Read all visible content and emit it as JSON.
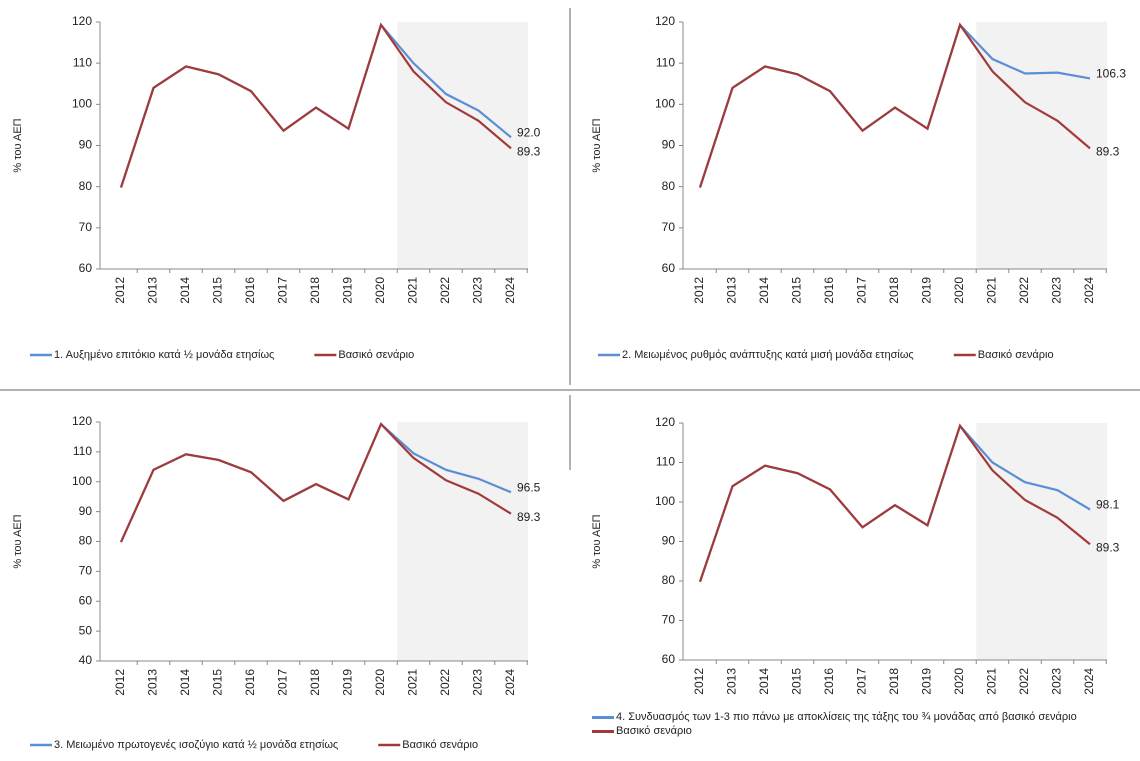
{
  "chart_data": [
    {
      "type": "line",
      "y_label": "% του ΑΕΠ",
      "categories": [
        "2012",
        "2013",
        "2014",
        "2015",
        "2016",
        "2017",
        "2018",
        "2019",
        "2020",
        "2021",
        "2022",
        "2023",
        "2024"
      ],
      "forecast_start": "2021",
      "ylim": [
        60,
        120
      ],
      "yticks": [
        60,
        70,
        80,
        90,
        100,
        110,
        120
      ],
      "legend": "bottom",
      "series": [
        {
          "name": "1. Αυξημένο επιτόκιο κατά ½ μονάδα ετησίως",
          "color": "#5b8fd4",
          "values": [
            79.8,
            104,
            109.2,
            107.3,
            103.2,
            93.6,
            99.2,
            94.1,
            119.3,
            110,
            102.5,
            98.5,
            92.0
          ],
          "value_labels": [
            null,
            null,
            null,
            null,
            null,
            null,
            null,
            null,
            null,
            null,
            null,
            null,
            "92.0"
          ]
        },
        {
          "name": "Βασικό σενάριο",
          "color": "#a33a3a",
          "values": [
            79.8,
            104,
            109.2,
            107.3,
            103.2,
            93.6,
            99.2,
            94.1,
            119.3,
            108,
            100.5,
            96,
            89.3
          ]
        }
      ]
    },
    {
      "type": "line",
      "y_label": "% του ΑΕΠ",
      "categories": [
        "2012",
        "2013",
        "2014",
        "2015",
        "2016",
        "2017",
        "2018",
        "2019",
        "2020",
        "2021",
        "2022",
        "2023",
        "2024"
      ],
      "forecast_start": "2021",
      "ylim": [
        60,
        120
      ],
      "yticks": [
        60,
        70,
        80,
        90,
        100,
        110,
        120
      ],
      "legend": "bottom",
      "series": [
        {
          "name": "2. Μειωμένος ρυθμός ανάπτυξης κατά μισή μονάδα ετησίως",
          "color": "#5b8fd4",
          "values": [
            79.8,
            104,
            109.2,
            107.3,
            103.2,
            93.6,
            99.2,
            94.1,
            119.3,
            111,
            107.5,
            107.7,
            106.3
          ]
        },
        {
          "name": "Βασικό σενάριο",
          "color": "#a33a3a",
          "values": [
            79.8,
            104,
            109.2,
            107.3,
            103.2,
            93.6,
            99.2,
            94.1,
            119.3,
            108,
            100.5,
            96,
            89.3
          ]
        }
      ]
    },
    {
      "type": "line",
      "y_label": "% του ΑΕΠ",
      "categories": [
        "2012",
        "2013",
        "2014",
        "2015",
        "2016",
        "2017",
        "2018",
        "2019",
        "2020",
        "2021",
        "2022",
        "2023",
        "2024"
      ],
      "forecast_start": "2021",
      "ylim": [
        40,
        120
      ],
      "yticks": [
        40,
        50,
        60,
        70,
        80,
        90,
        100,
        110,
        120
      ],
      "legend": "bottom",
      "series": [
        {
          "name": "3. Μειωμένο πρωτογενές ισοζύγιο κατά ½ μονάδα ετησίως",
          "color": "#5b8fd4",
          "values": [
            79.8,
            104,
            109.2,
            107.3,
            103.2,
            93.6,
            99.2,
            94.1,
            119.3,
            109.5,
            104,
            101,
            96.5
          ]
        },
        {
          "name": "Βασικό σενάριο",
          "color": "#a33a3a",
          "values": [
            79.8,
            104,
            109.2,
            107.3,
            103.2,
            93.6,
            99.2,
            94.1,
            119.3,
            108,
            100.5,
            96,
            89.3
          ]
        }
      ]
    },
    {
      "type": "line",
      "y_label": "% του ΑΕΠ",
      "categories": [
        "2012",
        "2013",
        "2014",
        "2015",
        "2016",
        "2017",
        "2018",
        "2019",
        "2020",
        "2021",
        "2022",
        "2023",
        "2024"
      ],
      "forecast_start": "2021",
      "ylim": [
        60,
        120
      ],
      "yticks": [
        60,
        70,
        80,
        90,
        100,
        110,
        120
      ],
      "legend": "bottom",
      "series": [
        {
          "name": "4. Συνδυασμός των 1-3 πιο πάνω με αποκλίσεις της τάξης του ¾ μονάδας από βασικό σενάριο",
          "color": "#5b8fd4",
          "values": [
            79.8,
            104,
            109.2,
            107.3,
            103.2,
            93.6,
            99.2,
            94.1,
            119.3,
            110,
            105,
            103,
            98.1
          ]
        },
        {
          "name": "Βασικό σενάριο",
          "color": "#a33a3a",
          "values": [
            79.8,
            104,
            109.2,
            107.3,
            103.2,
            93.6,
            99.2,
            94.1,
            119.3,
            108,
            100.5,
            96,
            89.3
          ]
        }
      ]
    }
  ]
}
